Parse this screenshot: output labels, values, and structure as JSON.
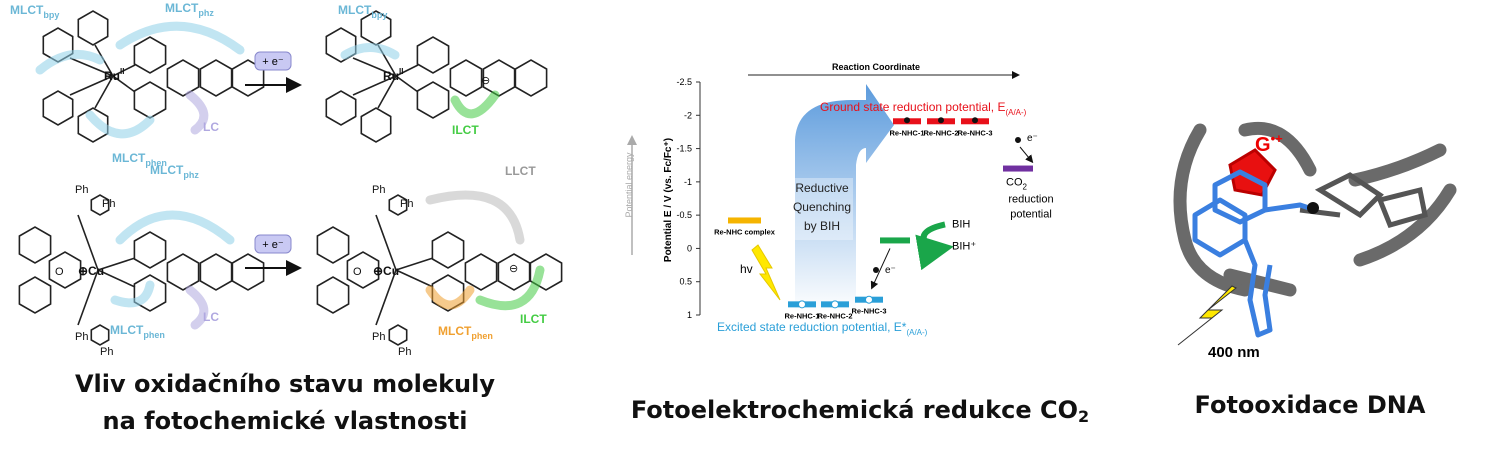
{
  "left_panel": {
    "caption": [
      "Vliv oxidačního stavu molekuly",
      "na fotochemické vlastnosti"
    ],
    "labels": [
      {
        "text": "MLCT",
        "sub": "bpy"
      },
      {
        "text": "MLCT",
        "sub": "phz"
      },
      {
        "text": "LC"
      },
      {
        "text": "MLCT",
        "sub": "phen"
      },
      {
        "text": "MLCT",
        "sub": "bpy"
      },
      {
        "text": "ILCT"
      },
      {
        "text": "MLCT",
        "sub": "phz"
      },
      {
        "text": "LC"
      },
      {
        "text": "MLCT",
        "sub": "phen"
      },
      {
        "text": "LLCT"
      },
      {
        "text": "MLCT",
        "sub": "phen"
      },
      {
        "text": "ILCT"
      }
    ],
    "reagents": [
      "+ e⁻",
      "+ e⁻"
    ],
    "metals": [
      {
        "text": "Ru",
        "sup": "II"
      },
      {
        "text": "Ru",
        "sup": "II"
      },
      {
        "text": "⊕Cu"
      },
      {
        "text": "⊕Cu"
      }
    ],
    "atoms": [
      "Ph",
      "Ph",
      "Ph",
      "Ph",
      "O",
      "Ph",
      "Ph",
      "Ph",
      "Ph",
      "O",
      "⊖",
      "⊖"
    ]
  },
  "middle_panel": {
    "caption": {
      "text": "Fotoelektrochemická redukce CO",
      "sub": "2"
    },
    "x_label": "Reaction Coordinate",
    "side_label": "Potential energy",
    "y_label": "Potential E / V (vs. Fc/Fc⁺)",
    "ylim": [
      -2.5,
      1
    ],
    "yticks": [
      -2.5,
      -2,
      -1.5,
      -1,
      -0.5,
      0,
      0.5,
      1
    ],
    "quenching": [
      "Reductive",
      "Quenching",
      "by BIH"
    ],
    "ground_label": {
      "text": "Ground state reduction potential, E",
      "sub": "(A/A-)"
    },
    "excited_label": {
      "text": "Excited state reduction potential, E*",
      "sub": "(A/A-)"
    },
    "levels": [
      {
        "label": "Re-NHC complex",
        "value": -0.42,
        "color": "#f5b400"
      },
      {
        "label": "Re-NHC-1",
        "value": -1.91,
        "color": "#e8101a"
      },
      {
        "label": "Re-NHC-2",
        "value": -1.91,
        "color": "#e8101a"
      },
      {
        "label": "Re-NHC-3",
        "value": -1.91,
        "color": "#e8101a"
      },
      {
        "label": "Re-NHC-1",
        "value": 0.84,
        "color": "#2a9fd8"
      },
      {
        "label": "Re-NHC-2",
        "value": 0.84,
        "color": "#2a9fd8"
      },
      {
        "label": "Re-NHC-3",
        "value": 0.77,
        "color": "#2a9fd8"
      },
      {
        "value": -1.2,
        "color": "#7030a0"
      },
      {
        "value": -0.12,
        "color": "#1aa64a"
      }
    ],
    "co2_label": {
      "text": "CO",
      "sub": "2",
      "lines": [
        "reduction",
        "potential"
      ]
    },
    "bih": [
      "BIH",
      "BIH⁺"
    ],
    "electron": [
      "e⁻",
      "e⁻"
    ],
    "hv": "hv"
  },
  "right_panel": {
    "caption": "Fotooxidace DNA",
    "radical": {
      "text": "G",
      "sup": "•+"
    },
    "wavelength": "400 nm"
  }
}
